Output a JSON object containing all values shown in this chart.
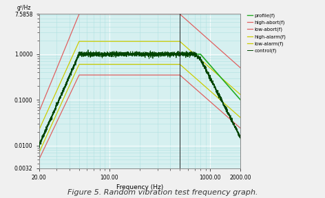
{
  "title": "Figure 5. Random vibration test frequency graph.",
  "xlabel": "Frequency (Hz)",
  "ylabel": "g²/Hz",
  "xlim": [
    20.0,
    2000.0
  ],
  "ylim": [
    0.0032,
    7.5858
  ],
  "ytick_values": [
    0.0032,
    0.01,
    0.1,
    1.0,
    7.5858
  ],
  "ytick_labels": [
    "0.0032",
    "0.0100",
    "0.1000",
    "1.0000",
    "7.5858"
  ],
  "xtick_values": [
    20.0,
    100.0,
    1000.0,
    2000.0
  ],
  "xtick_labels": [
    "20.00",
    "100.00",
    "1000.00",
    "2000.00"
  ],
  "plot_bg_color": "#d6f0f0",
  "fig_bg_color": "#f0f0f0",
  "grid_major_color": "#ffffff",
  "grid_minor_color": "#b0e0e0",
  "profile_color": "#22aa22",
  "high_abort_color": "#e06060",
  "low_abort_color": "#e06060",
  "high_alarm_color": "#cccc00",
  "low_alarm_color": "#cccc00",
  "control_color": "#004400",
  "vline_color": "#222222",
  "vline_x": 500.0,
  "legend_labels": [
    "profile(f)",
    "high-abort(f)",
    "low-abort(f)",
    "high-alarm(f)",
    "low-alarm(f)",
    "control(f)"
  ]
}
